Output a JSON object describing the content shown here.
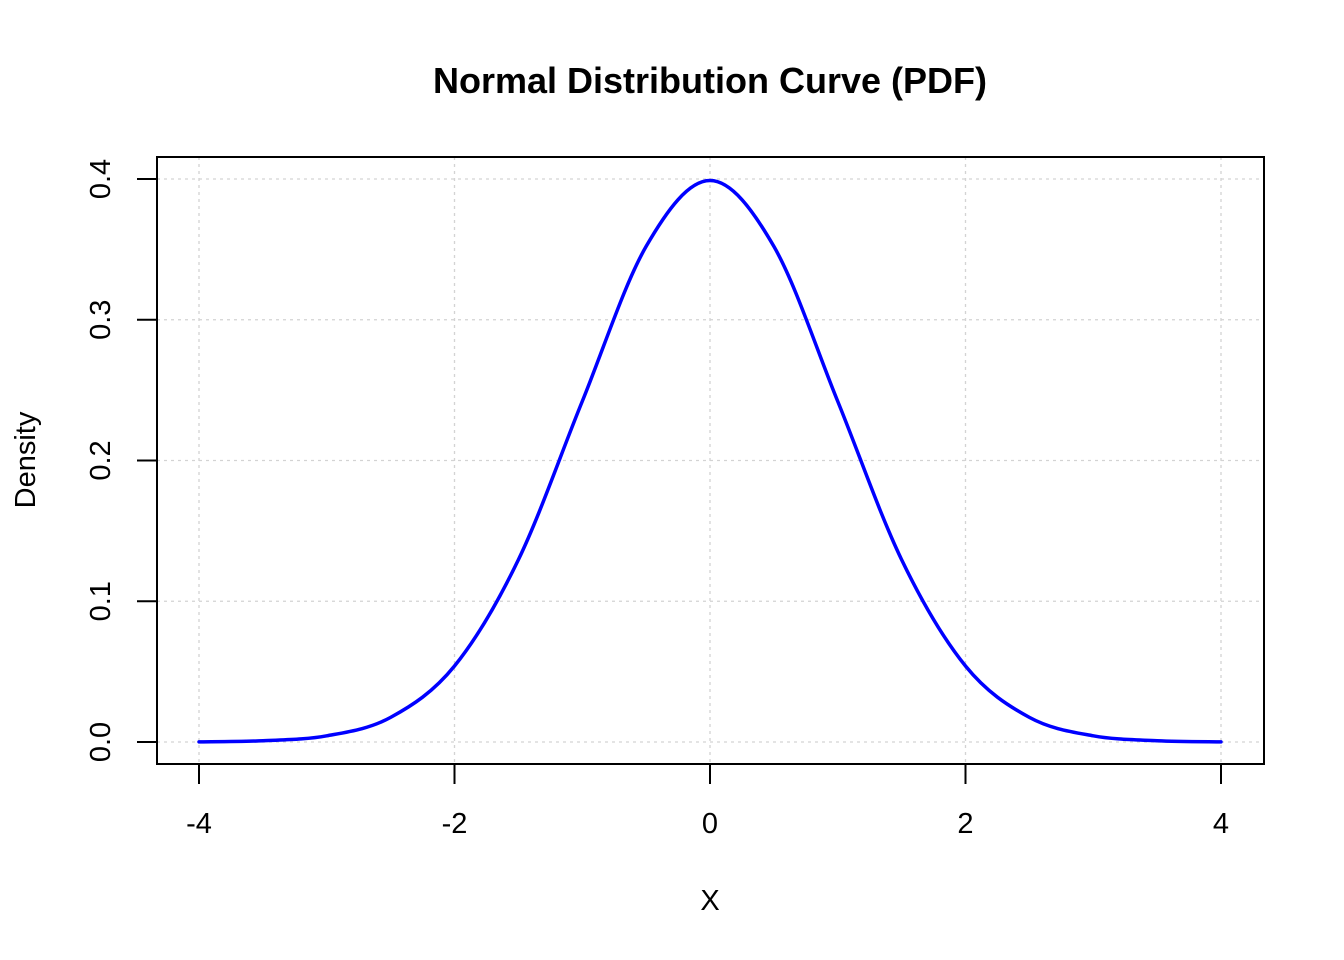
{
  "chart_data": {
    "type": "line",
    "title": "Normal Distribution Curve (PDF)",
    "xlabel": "X",
    "ylabel": "Density",
    "xlim": [
      -4,
      4
    ],
    "ylim": [
      0,
      0.4
    ],
    "x_ticks": [
      -4,
      -2,
      0,
      2,
      4
    ],
    "x_tick_labels": [
      "-4",
      "-2",
      "0",
      "2",
      "4"
    ],
    "y_ticks": [
      0,
      0.1,
      0.2,
      0.3,
      0.4
    ],
    "y_tick_labels": [
      "0.0",
      "0.1",
      "0.2",
      "0.3",
      "0.4"
    ],
    "grid": true,
    "series": [
      {
        "color": "#0000ff",
        "x": [
          -4,
          -3.5,
          -3,
          -2.5,
          -2,
          -1.5,
          -1,
          -0.5,
          0,
          0.5,
          1,
          1.5,
          2,
          2.5,
          3,
          3.5,
          4
        ],
        "y": [
          0.0001,
          0.0009,
          0.0044,
          0.0175,
          0.054,
          0.1295,
          0.242,
          0.3521,
          0.3989,
          0.3521,
          0.242,
          0.1295,
          0.054,
          0.0175,
          0.0044,
          0.0009,
          0.0001
        ]
      }
    ],
    "grid_color": "#d3d3d3"
  }
}
